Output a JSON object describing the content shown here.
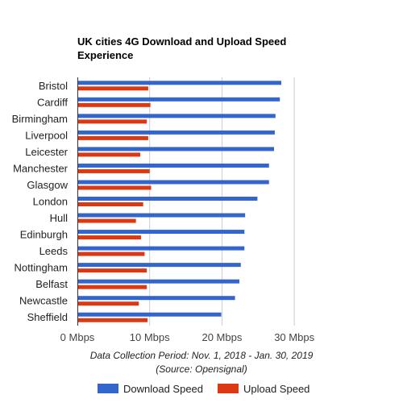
{
  "chart_data": {
    "type": "bar",
    "orientation": "horizontal",
    "title_lines": [
      "UK cities 4G Download and Upload Speed",
      "Experience"
    ],
    "categories": [
      "Bristol",
      "Cardiff",
      "Birmingham",
      "Liverpool",
      "Leicester",
      "Manchester",
      "Glasgow",
      "London",
      "Hull",
      "Edinburgh",
      "Leeds",
      "Nottingham",
      "Belfast",
      "Newcastle",
      "Sheffield"
    ],
    "series": [
      {
        "name": "Download Speed",
        "color": "#3366cc",
        "values": [
          28.2,
          28.0,
          27.4,
          27.3,
          27.2,
          26.5,
          26.5,
          24.9,
          23.2,
          23.1,
          23.1,
          22.6,
          22.4,
          21.8,
          19.9
        ]
      },
      {
        "name": "Upload Speed",
        "color": "#dc3912",
        "values": [
          9.8,
          10.1,
          9.6,
          9.8,
          8.7,
          10.0,
          10.2,
          9.1,
          8.1,
          8.8,
          9.3,
          9.6,
          9.6,
          8.5,
          9.7
        ]
      }
    ],
    "x_ticks": [
      "0 Mbps",
      "10 Mbps",
      "20 Mbps",
      "30 Mbps"
    ],
    "xlim": [
      0,
      35
    ],
    "grid": true,
    "legend_position": "bottom",
    "annotation_lines": [
      "Data Collection Period: Nov. 1, 2018 - Jan. 30, 2019",
      "(Source: Opensignal)"
    ]
  }
}
